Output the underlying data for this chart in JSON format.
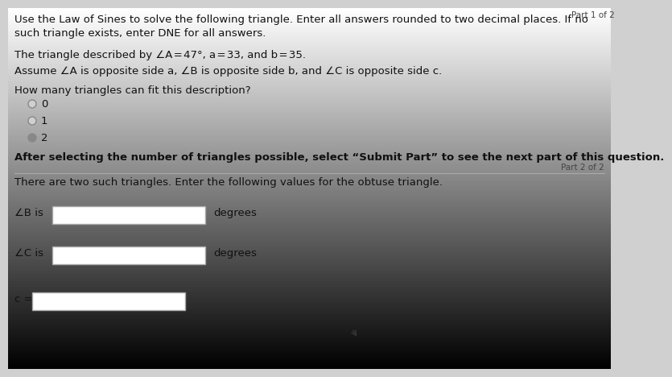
{
  "bg_color": "#d0d0d0",
  "text_color": "#111111",
  "part1_text": "Part 1 of 2",
  "title_text": "Use the Law of Sines to solve the following triangle. Enter all answers rounded to two decimal places. If no\nsuch triangle exists, enter DNE for all answers.",
  "problem_text": "The triangle described by ∠A = 47°, a = 33, and b = 35.",
  "assume_text": "Assume ∠A is opposite side a, ∠B is opposite side b, and ∠C is opposite side c.",
  "question_text": "How many triangles can fit this description?",
  "radio_options": [
    "0",
    "1",
    "2"
  ],
  "radio_selected": 2,
  "after_text": "After selecting the number of triangles possible, select “Submit Part” to see the next part of this question.",
  "part2_label": "Part 2 of 2",
  "part2_text": "There are two such triangles. Enter the following values for the obtuse triangle.",
  "label_B": "∠B is",
  "label_C": "∠C is",
  "label_c": "c =",
  "suffix_B": "degrees",
  "suffix_C": "degrees",
  "divider_color": "#aaaaaa",
  "input_box_color": "#ffffff",
  "input_border_color": "#aaaaaa",
  "radio_unfilled_color": "#d0d0d0",
  "radio_filled_color": "#888888",
  "radio_border_color": "#888888"
}
